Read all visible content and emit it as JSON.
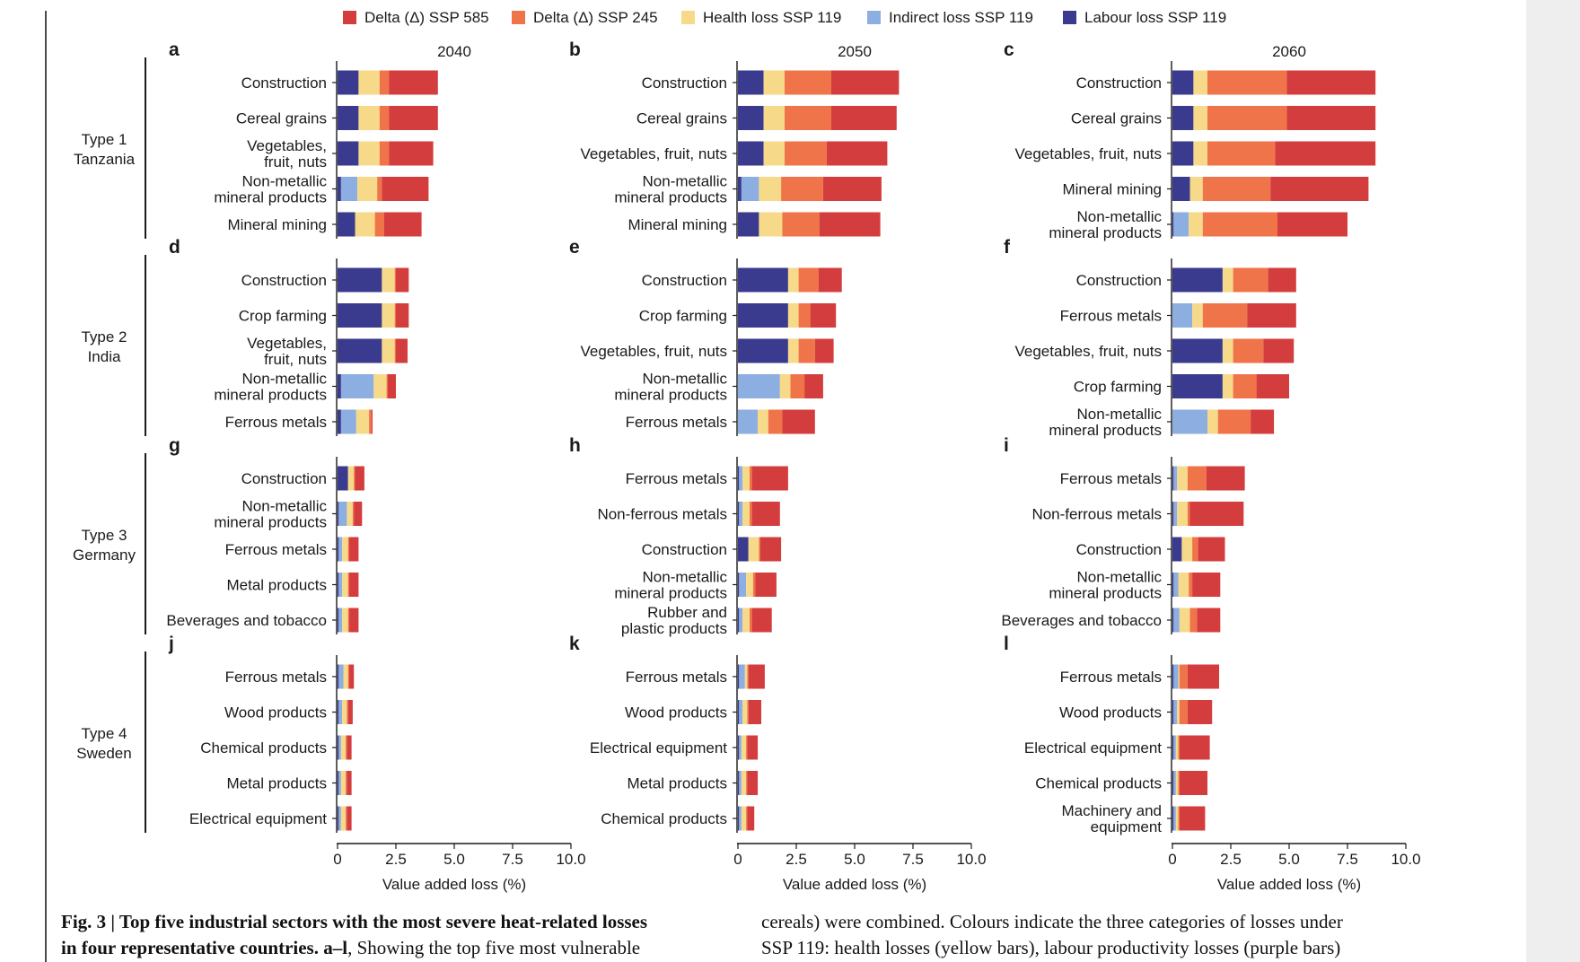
{
  "colors": {
    "delta_585": "#d43d3d",
    "delta_245": "#f0744a",
    "health_119": "#f7d98a",
    "indirect_119": "#8caee0",
    "labour_119": "#3a3a8f"
  },
  "legend": [
    {
      "key": "delta_585",
      "label": "Delta (Δ) SSP 585"
    },
    {
      "key": "delta_245",
      "label": "Delta (Δ) SSP 245"
    },
    {
      "key": "health_119",
      "label": "Health loss SSP 119"
    },
    {
      "key": "indirect_119",
      "label": "Indirect loss SSP 119"
    },
    {
      "key": "labour_119",
      "label": "Labour loss SSP 119"
    }
  ],
  "years": [
    "2040",
    "2050",
    "2060"
  ],
  "row_labels": [
    [
      "Type 1",
      "Tanzania"
    ],
    [
      "Type 2",
      "India"
    ],
    [
      "Type 3",
      "Germany"
    ],
    [
      "Type 4",
      "Sweden"
    ]
  ],
  "axis": {
    "xlabel": "Value added loss (%)",
    "ticks": [
      "0",
      "2.5",
      "5.0",
      "7.5",
      "10.0"
    ]
  },
  "caption": {
    "left_line1_bold": "Fig. 3 | Top five industrial sectors with the most severe heat-related losses",
    "left_line2_bold": "in four representative countries. a–l",
    "left_line2_rest": ", Showing the top five most vulnerable",
    "right_line1": "cereals) were combined. Colours indicate the three categories of losses under",
    "right_line2": "SSP 119: health losses (yellow bars), labour productivity losses (purple bars)"
  },
  "chart_data": {
    "type": "bar",
    "orientation": "horizontal-stacked",
    "xlim": [
      0,
      10
    ],
    "xlabel": "Value added loss (%)",
    "stack_order": [
      "labour_119",
      "indirect_119",
      "health_119",
      "delta_245",
      "delta_585"
    ],
    "panels": [
      {
        "letter": "a",
        "country": "Tanzania",
        "year": "2040",
        "sectors": [
          {
            "label": [
              "Construction"
            ],
            "labour_119": 0.9,
            "indirect_119": 0,
            "health_119": 0.9,
            "delta_245": 0.4,
            "delta_585": 2.1
          },
          {
            "label": [
              "Cereal grains"
            ],
            "labour_119": 0.9,
            "indirect_119": 0,
            "health_119": 0.9,
            "delta_245": 0.4,
            "delta_585": 2.1
          },
          {
            "label": [
              "Vegetables,",
              "fruit, nuts"
            ],
            "labour_119": 0.9,
            "indirect_119": 0,
            "health_119": 0.9,
            "delta_245": 0.4,
            "delta_585": 1.9
          },
          {
            "label": [
              "Non-metallic",
              "mineral products"
            ],
            "labour_119": 0.15,
            "indirect_119": 0.7,
            "health_119": 0.85,
            "delta_245": 0.2,
            "delta_585": 2.0
          },
          {
            "label": [
              "Mineral mining"
            ],
            "labour_119": 0.75,
            "indirect_119": 0,
            "health_119": 0.85,
            "delta_245": 0.4,
            "delta_585": 1.6
          }
        ]
      },
      {
        "letter": "b",
        "country": "Tanzania",
        "year": "2050",
        "sectors": [
          {
            "label": [
              "Construction"
            ],
            "labour_119": 1.1,
            "indirect_119": 0,
            "health_119": 0.9,
            "delta_245": 2.0,
            "delta_585": 2.9
          },
          {
            "label": [
              "Cereal grains"
            ],
            "labour_119": 1.1,
            "indirect_119": 0,
            "health_119": 0.9,
            "delta_245": 2.0,
            "delta_585": 2.8
          },
          {
            "label": [
              "Vegetables, fruit, nuts"
            ],
            "labour_119": 1.1,
            "indirect_119": 0,
            "health_119": 0.9,
            "delta_245": 1.8,
            "delta_585": 2.6
          },
          {
            "label": [
              "Non-metallic",
              "mineral products"
            ],
            "labour_119": 0.15,
            "indirect_119": 0.75,
            "health_119": 0.95,
            "delta_245": 1.8,
            "delta_585": 2.5
          },
          {
            "label": [
              "Mineral mining"
            ],
            "labour_119": 0.9,
            "indirect_119": 0,
            "health_119": 1.0,
            "delta_245": 1.6,
            "delta_585": 2.6
          }
        ]
      },
      {
        "letter": "c",
        "country": "Tanzania",
        "year": "2060",
        "sectors": [
          {
            "label": [
              "Construction"
            ],
            "labour_119": 0.9,
            "indirect_119": 0,
            "health_119": 0.6,
            "delta_245": 3.4,
            "delta_585": 3.8
          },
          {
            "label": [
              "Cereal grains"
            ],
            "labour_119": 0.9,
            "indirect_119": 0,
            "health_119": 0.6,
            "delta_245": 3.4,
            "delta_585": 3.8
          },
          {
            "label": [
              "Vegetables, fruit, nuts"
            ],
            "labour_119": 0.9,
            "indirect_119": 0,
            "health_119": 0.6,
            "delta_245": 2.9,
            "delta_585": 4.3
          },
          {
            "label": [
              "Mineral mining"
            ],
            "labour_119": 0.75,
            "indirect_119": 0,
            "health_119": 0.55,
            "delta_245": 2.9,
            "delta_585": 4.2
          },
          {
            "label": [
              "Non-metallic",
              "mineral products"
            ],
            "labour_119": 0.05,
            "indirect_119": 0.65,
            "health_119": 0.6,
            "delta_245": 3.2,
            "delta_585": 3.0
          }
        ]
      },
      {
        "letter": "d",
        "country": "India",
        "year": "2040",
        "sectors": [
          {
            "label": [
              "Construction"
            ],
            "labour_119": 1.9,
            "indirect_119": 0,
            "health_119": 0.55,
            "delta_245": 0.05,
            "delta_585": 0.55
          },
          {
            "label": [
              "Crop farming"
            ],
            "labour_119": 1.9,
            "indirect_119": 0,
            "health_119": 0.55,
            "delta_245": 0.05,
            "delta_585": 0.55
          },
          {
            "label": [
              "Vegetables,",
              "fruit, nuts"
            ],
            "labour_119": 1.9,
            "indirect_119": 0,
            "health_119": 0.55,
            "delta_245": 0.05,
            "delta_585": 0.5
          },
          {
            "label": [
              "Non-metallic",
              "mineral products"
            ],
            "labour_119": 0.15,
            "indirect_119": 1.4,
            "health_119": 0.55,
            "delta_245": 0.05,
            "delta_585": 0.35
          },
          {
            "label": [
              "Ferrous metals"
            ],
            "labour_119": 0.15,
            "indirect_119": 0.65,
            "health_119": 0.55,
            "delta_245": 0.1,
            "delta_585": 0.05
          }
        ]
      },
      {
        "letter": "e",
        "country": "India",
        "year": "2050",
        "sectors": [
          {
            "label": [
              "Construction"
            ],
            "labour_119": 2.15,
            "indirect_119": 0,
            "health_119": 0.45,
            "delta_245": 0.85,
            "delta_585": 1.0
          },
          {
            "label": [
              "Crop farming"
            ],
            "labour_119": 2.15,
            "indirect_119": 0,
            "health_119": 0.45,
            "delta_245": 0.5,
            "delta_585": 1.1
          },
          {
            "label": [
              "Vegetables, fruit, nuts"
            ],
            "labour_119": 2.15,
            "indirect_119": 0,
            "health_119": 0.45,
            "delta_245": 0.7,
            "delta_585": 0.8
          },
          {
            "label": [
              "Non-metallic",
              "mineral products"
            ],
            "labour_119": 0,
            "indirect_119": 1.8,
            "health_119": 0.45,
            "delta_245": 0.6,
            "delta_585": 0.8
          },
          {
            "label": [
              "Ferrous metals"
            ],
            "labour_119": 0,
            "indirect_119": 0.85,
            "health_119": 0.45,
            "delta_245": 0.6,
            "delta_585": 1.4
          }
        ]
      },
      {
        "letter": "f",
        "country": "India",
        "year": "2060",
        "sectors": [
          {
            "label": [
              "Construction"
            ],
            "labour_119": 2.15,
            "indirect_119": 0,
            "health_119": 0.45,
            "delta_245": 1.5,
            "delta_585": 1.2
          },
          {
            "label": [
              "Ferrous metals"
            ],
            "labour_119": 0,
            "indirect_119": 0.85,
            "health_119": 0.45,
            "delta_245": 1.9,
            "delta_585": 2.1
          },
          {
            "label": [
              "Vegetables, fruit, nuts"
            ],
            "labour_119": 2.15,
            "indirect_119": 0,
            "health_119": 0.45,
            "delta_245": 1.3,
            "delta_585": 1.3
          },
          {
            "label": [
              "Crop farming"
            ],
            "labour_119": 2.15,
            "indirect_119": 0,
            "health_119": 0.45,
            "delta_245": 1.0,
            "delta_585": 1.4
          },
          {
            "label": [
              "Non-metallic",
              "mineral products"
            ],
            "labour_119": 0,
            "indirect_119": 1.5,
            "health_119": 0.45,
            "delta_245": 1.4,
            "delta_585": 1.0
          }
        ]
      },
      {
        "letter": "g",
        "country": "Germany",
        "year": "2040",
        "sectors": [
          {
            "label": [
              "Construction"
            ],
            "labour_119": 0.45,
            "indirect_119": 0,
            "health_119": 0.25,
            "delta_245": 0.05,
            "delta_585": 0.4
          },
          {
            "label": [
              "Non-metallic",
              "mineral products"
            ],
            "labour_119": 0.05,
            "indirect_119": 0.35,
            "health_119": 0.25,
            "delta_245": 0.05,
            "delta_585": 0.35
          },
          {
            "label": [
              "Ferrous metals"
            ],
            "labour_119": 0.05,
            "indirect_119": 0.15,
            "health_119": 0.25,
            "delta_245": 0.05,
            "delta_585": 0.4
          },
          {
            "label": [
              "Metal products"
            ],
            "labour_119": 0.05,
            "indirect_119": 0.15,
            "health_119": 0.25,
            "delta_245": 0.05,
            "delta_585": 0.4
          },
          {
            "label": [
              "Beverages and tobacco"
            ],
            "labour_119": 0.05,
            "indirect_119": 0.15,
            "health_119": 0.25,
            "delta_245": 0.05,
            "delta_585": 0.4
          }
        ]
      },
      {
        "letter": "h",
        "country": "Germany",
        "year": "2050",
        "sectors": [
          {
            "label": [
              "Ferrous metals"
            ],
            "labour_119": 0.05,
            "indirect_119": 0.15,
            "health_119": 0.3,
            "delta_245": 0.1,
            "delta_585": 1.55
          },
          {
            "label": [
              "Non-ferrous metals"
            ],
            "labour_119": 0.05,
            "indirect_119": 0.15,
            "health_119": 0.3,
            "delta_245": 0.1,
            "delta_585": 1.2
          },
          {
            "label": [
              "Construction"
            ],
            "labour_119": 0.45,
            "indirect_119": 0,
            "health_119": 0.45,
            "delta_245": 0.05,
            "delta_585": 0.9
          },
          {
            "label": [
              "Non-metallic",
              "mineral products"
            ],
            "labour_119": 0.05,
            "indirect_119": 0.3,
            "health_119": 0.3,
            "delta_245": 0.1,
            "delta_585": 0.9
          },
          {
            "label": [
              "Rubber and",
              "plastic products"
            ],
            "labour_119": 0.05,
            "indirect_119": 0.15,
            "health_119": 0.3,
            "delta_245": 0.1,
            "delta_585": 0.85
          }
        ]
      },
      {
        "letter": "i",
        "country": "Germany",
        "year": "2060",
        "sectors": [
          {
            "label": [
              "Ferrous metals"
            ],
            "labour_119": 0.05,
            "indirect_119": 0.15,
            "health_119": 0.45,
            "delta_245": 0.8,
            "delta_585": 1.65
          },
          {
            "label": [
              "Non-ferrous metals"
            ],
            "labour_119": 0.05,
            "indirect_119": 0.15,
            "health_119": 0.45,
            "delta_245": 0.1,
            "delta_585": 2.3
          },
          {
            "label": [
              "Construction"
            ],
            "labour_119": 0.4,
            "indirect_119": 0,
            "health_119": 0.45,
            "delta_245": 0.25,
            "delta_585": 1.15
          },
          {
            "label": [
              "Non-metallic",
              "mineral products"
            ],
            "labour_119": 0.05,
            "indirect_119": 0.2,
            "health_119": 0.45,
            "delta_245": 0.15,
            "delta_585": 1.2
          },
          {
            "label": [
              "Beverages and tobacco"
            ],
            "labour_119": 0.05,
            "indirect_119": 0.25,
            "health_119": 0.45,
            "delta_245": 0.3,
            "delta_585": 1.0
          }
        ]
      },
      {
        "letter": "j",
        "country": "Sweden",
        "year": "2040",
        "sectors": [
          {
            "label": [
              "Ferrous metals"
            ],
            "labour_119": 0.05,
            "indirect_119": 0.2,
            "health_119": 0.2,
            "delta_245": 0.05,
            "delta_585": 0.2
          },
          {
            "label": [
              "Wood products"
            ],
            "labour_119": 0.05,
            "indirect_119": 0.15,
            "health_119": 0.2,
            "delta_245": 0.05,
            "delta_585": 0.2
          },
          {
            "label": [
              "Chemical products"
            ],
            "labour_119": 0.05,
            "indirect_119": 0.1,
            "health_119": 0.2,
            "delta_245": 0.05,
            "delta_585": 0.2
          },
          {
            "label": [
              "Metal products"
            ],
            "labour_119": 0.05,
            "indirect_119": 0.1,
            "health_119": 0.2,
            "delta_245": 0.05,
            "delta_585": 0.2
          },
          {
            "label": [
              "Electrical equipment"
            ],
            "labour_119": 0.05,
            "indirect_119": 0.1,
            "health_119": 0.2,
            "delta_245": 0.05,
            "delta_585": 0.2
          }
        ]
      },
      {
        "letter": "k",
        "country": "Sweden",
        "year": "2050",
        "sectors": [
          {
            "label": [
              "Ferrous metals"
            ],
            "labour_119": 0.05,
            "indirect_119": 0.25,
            "health_119": 0.1,
            "delta_245": 0.05,
            "delta_585": 0.7
          },
          {
            "label": [
              "Wood products"
            ],
            "labour_119": 0.05,
            "indirect_119": 0.15,
            "health_119": 0.2,
            "delta_245": 0.05,
            "delta_585": 0.55
          },
          {
            "label": [
              "Electrical equipment"
            ],
            "labour_119": 0.05,
            "indirect_119": 0.1,
            "health_119": 0.2,
            "delta_245": 0.05,
            "delta_585": 0.45
          },
          {
            "label": [
              "Metal products"
            ],
            "labour_119": 0.05,
            "indirect_119": 0.1,
            "health_119": 0.2,
            "delta_245": 0.05,
            "delta_585": 0.45
          },
          {
            "label": [
              "Chemical products"
            ],
            "labour_119": 0.05,
            "indirect_119": 0.1,
            "health_119": 0.2,
            "delta_245": 0.05,
            "delta_585": 0.3
          }
        ]
      },
      {
        "letter": "l",
        "country": "Sweden",
        "year": "2060",
        "sectors": [
          {
            "label": [
              "Ferrous metals"
            ],
            "labour_119": 0.05,
            "indirect_119": 0.2,
            "health_119": 0.05,
            "delta_245": 0.35,
            "delta_585": 1.35
          },
          {
            "label": [
              "Wood products"
            ],
            "labour_119": 0.05,
            "indirect_119": 0.15,
            "health_119": 0.1,
            "delta_245": 0.35,
            "delta_585": 1.05
          },
          {
            "label": [
              "Electrical equipment"
            ],
            "labour_119": 0.05,
            "indirect_119": 0.1,
            "health_119": 0.1,
            "delta_245": 0.05,
            "delta_585": 1.3
          },
          {
            "label": [
              "Chemical products"
            ],
            "labour_119": 0.05,
            "indirect_119": 0.1,
            "health_119": 0.1,
            "delta_245": 0.05,
            "delta_585": 1.2
          },
          {
            "label": [
              "Machinery and",
              "equipment"
            ],
            "labour_119": 0.05,
            "indirect_119": 0.1,
            "health_119": 0.1,
            "delta_245": 0.05,
            "delta_585": 1.1
          }
        ]
      }
    ]
  }
}
